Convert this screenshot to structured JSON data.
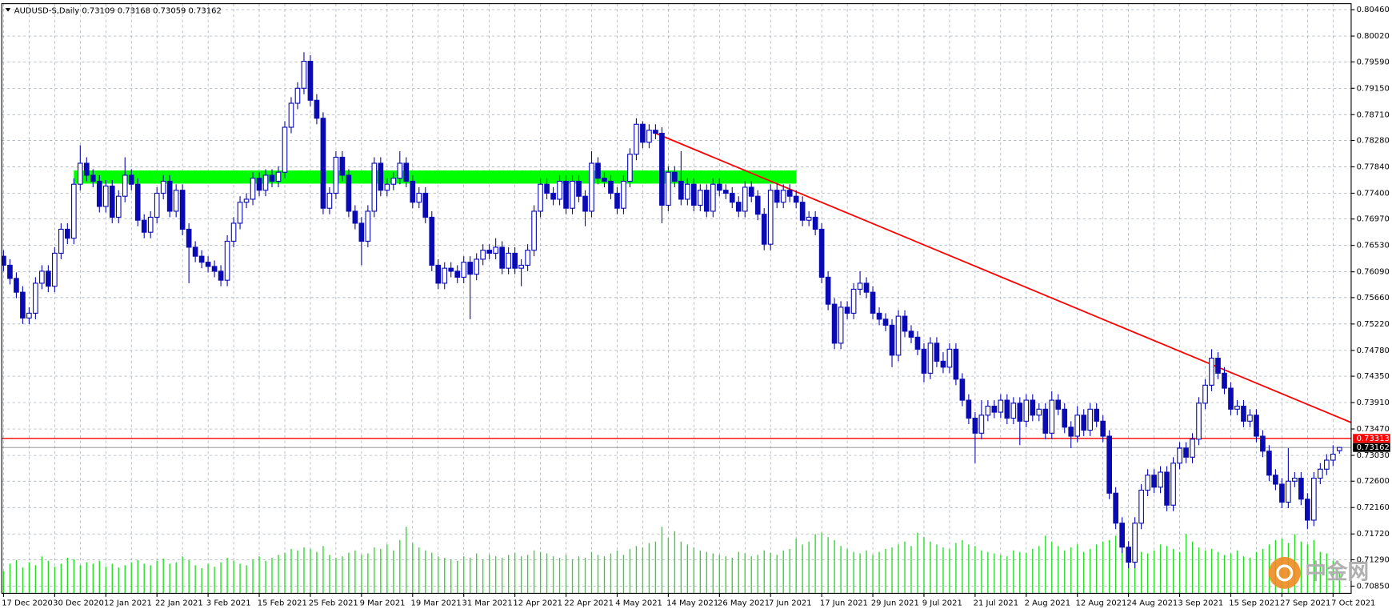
{
  "chart_data": {
    "type": "candlestick",
    "title": "AUDUSD-S,Daily",
    "color": "#0a0ab4",
    "volume_color": "#22dd22",
    "grid": true,
    "ylim": [
      0.7073,
      0.8056
    ],
    "yticks": [
      {
        "value": 0.8046,
        "label": "0.80460"
      },
      {
        "value": 0.8002,
        "label": "0.80020"
      },
      {
        "value": 0.7959,
        "label": "0.79590"
      },
      {
        "value": 0.7915,
        "label": "0.79150"
      },
      {
        "value": 0.7871,
        "label": "0.78710"
      },
      {
        "value": 0.7828,
        "label": "0.78280"
      },
      {
        "value": 0.7784,
        "label": "0.77840"
      },
      {
        "value": 0.774,
        "label": "0.77400"
      },
      {
        "value": 0.7697,
        "label": "0.76970"
      },
      {
        "value": 0.7653,
        "label": "0.76530"
      },
      {
        "value": 0.7609,
        "label": "0.76090"
      },
      {
        "value": 0.7566,
        "label": "0.75660"
      },
      {
        "value": 0.7522,
        "label": "0.75220"
      },
      {
        "value": 0.7478,
        "label": "0.74780"
      },
      {
        "value": 0.7435,
        "label": "0.74350"
      },
      {
        "value": 0.7391,
        "label": "0.73910"
      },
      {
        "value": 0.7347,
        "label": "0.73470"
      },
      {
        "value": 0.7303,
        "label": "0.73030"
      },
      {
        "value": 0.726,
        "label": "0.72600"
      },
      {
        "value": 0.7216,
        "label": "0.72160"
      },
      {
        "value": 0.7172,
        "label": "0.71720"
      },
      {
        "value": 0.7129,
        "label": "0.71290"
      },
      {
        "value": 0.7085,
        "label": "0.70850"
      }
    ],
    "categories": [
      "17 Dec 2020",
      null,
      null,
      null,
      null,
      null,
      null,
      null,
      "30 Dec 2020",
      null,
      null,
      null,
      null,
      null,
      null,
      null,
      "12 Jan 2021",
      null,
      null,
      null,
      null,
      null,
      null,
      null,
      "22 Jan 2021",
      null,
      null,
      null,
      null,
      null,
      null,
      null,
      "3 Feb 2021",
      null,
      null,
      null,
      null,
      null,
      null,
      null,
      "15 Feb 2021",
      null,
      null,
      null,
      null,
      null,
      null,
      null,
      "25 Feb 2021",
      null,
      null,
      null,
      null,
      null,
      null,
      null,
      "9 Mar 2021",
      null,
      null,
      null,
      null,
      null,
      null,
      null,
      "19 Mar 2021",
      null,
      null,
      null,
      null,
      null,
      null,
      null,
      "31 Mar 2021",
      null,
      null,
      null,
      null,
      null,
      null,
      null,
      "12 Apr 2021",
      null,
      null,
      null,
      null,
      null,
      null,
      null,
      "22 Apr 2021",
      null,
      null,
      null,
      null,
      null,
      null,
      null,
      "4 May 2021",
      null,
      null,
      null,
      null,
      null,
      null,
      null,
      "14 May 2021",
      null,
      null,
      null,
      null,
      null,
      null,
      null,
      "26 May 2021",
      null,
      null,
      null,
      null,
      null,
      null,
      null,
      "7 Jun 2021",
      null,
      null,
      null,
      null,
      null,
      null,
      null,
      "17 Jun 2021",
      null,
      null,
      null,
      null,
      null,
      null,
      null,
      "29 Jun 2021",
      null,
      null,
      null,
      null,
      null,
      null,
      null,
      "9 Jul 2021",
      null,
      null,
      null,
      null,
      null,
      null,
      null,
      "21 Jul 2021",
      null,
      null,
      null,
      null,
      null,
      null,
      null,
      "2 Aug 2021",
      null,
      null,
      null,
      null,
      null,
      null,
      null,
      "12 Aug 2021",
      null,
      null,
      null,
      null,
      null,
      null,
      null,
      "24 Aug 2021",
      null,
      null,
      null,
      null,
      null,
      null,
      null,
      "3 Sep 2021",
      null,
      null,
      null,
      null,
      null,
      null,
      null,
      "15 Sep 2021",
      null,
      null,
      null,
      null,
      null,
      null,
      null,
      "27 Sep 2021",
      null,
      null,
      null,
      null,
      null,
      null,
      null,
      "7 Oct 2021",
      null
    ],
    "open": [
      0.7635,
      0.762,
      0.7598,
      0.7575,
      0.7532,
      0.754,
      0.759,
      0.761,
      0.7585,
      0.764,
      0.768,
      0.7665,
      0.7755,
      0.779,
      0.777,
      0.776,
      0.7718,
      0.7752,
      0.77,
      0.7735,
      0.777,
      0.7755,
      0.7695,
      0.7675,
      0.77,
      0.774,
      0.776,
      0.771,
      0.7745,
      0.768,
      0.765,
      0.7635,
      0.7625,
      0.7618,
      0.761,
      0.7595,
      0.766,
      0.769,
      0.7725,
      0.773,
      0.7765,
      0.7745,
      0.777,
      0.776,
      0.7775,
      0.785,
      0.789,
      0.7915,
      0.796,
      0.7895,
      0.7865,
      0.7715,
      0.774,
      0.78,
      0.777,
      0.771,
      0.769,
      0.766,
      0.771,
      0.779,
      0.7745,
      0.7755,
      0.7765,
      0.779,
      0.776,
      0.7725,
      0.774,
      0.77,
      0.762,
      0.759,
      0.7615,
      0.761,
      0.76,
      0.7625,
      0.7605,
      0.763,
      0.7645,
      0.764,
      0.765,
      0.7615,
      0.764,
      0.7615,
      0.762,
      0.7645,
      0.771,
      0.7755,
      0.774,
      0.773,
      0.776,
      0.7715,
      0.776,
      0.7735,
      0.771,
      0.779,
      0.7765,
      0.776,
      0.774,
      0.7715,
      0.776,
      0.7805,
      0.7855,
      0.7825,
      0.7845,
      0.784,
      0.772,
      0.7775,
      0.776,
      0.773,
      0.7755,
      0.772,
      0.7745,
      0.771,
      0.7755,
      0.7745,
      0.774,
      0.7725,
      0.771,
      0.775,
      0.7735,
      0.7705,
      0.7655,
      0.7745,
      0.7725,
      0.7745,
      0.7735,
      0.7725,
      0.7695,
      0.77,
      0.768,
      0.76,
      0.7555,
      0.749,
      0.755,
      0.754,
      0.758,
      0.759,
      0.7575,
      0.754,
      0.753,
      0.752,
      0.747,
      0.7535,
      0.751,
      0.75,
      0.748,
      0.744,
      0.749,
      0.746,
      0.745,
      0.748,
      0.743,
      0.7395,
      0.7365,
      0.734,
      0.737,
      0.7385,
      0.7375,
      0.7395,
      0.7365,
      0.739,
      0.736,
      0.7395,
      0.737,
      0.738,
      0.734,
      0.7395,
      0.738,
      0.735,
      0.7335,
      0.737,
      0.7345,
      0.738,
      0.736,
      0.7335,
      0.724,
      0.719,
      0.715,
      0.7125,
      0.719,
      0.7245,
      0.727,
      0.725,
      0.7275,
      0.722,
      0.729,
      0.7315,
      0.73,
      0.733,
      0.739,
      0.742,
      0.7465,
      0.744,
      0.7415,
      0.738,
      0.7385,
      0.736,
      0.737,
      0.7335,
      0.731,
      0.727,
      0.7255,
      0.7225,
      0.726,
      0.7265,
      0.723,
      0.7195,
      0.7265,
      0.728,
      0.7295,
      0.73109
    ],
    "high": [
      0.7645,
      0.763,
      0.7608,
      0.7585,
      0.755,
      0.76,
      0.762,
      0.762,
      0.765,
      0.769,
      0.769,
      0.7765,
      0.782,
      0.78,
      0.778,
      0.777,
      0.7762,
      0.7762,
      0.7745,
      0.78,
      0.778,
      0.7765,
      0.7705,
      0.771,
      0.775,
      0.777,
      0.777,
      0.7755,
      0.7755,
      0.769,
      0.766,
      0.7645,
      0.7635,
      0.7628,
      0.762,
      0.767,
      0.77,
      0.7735,
      0.774,
      0.7775,
      0.7775,
      0.778,
      0.778,
      0.7785,
      0.786,
      0.79,
      0.7925,
      0.7975,
      0.797,
      0.7905,
      0.7875,
      0.775,
      0.781,
      0.781,
      0.778,
      0.772,
      0.77,
      0.772,
      0.78,
      0.78,
      0.7765,
      0.7775,
      0.781,
      0.78,
      0.777,
      0.775,
      0.775,
      0.771,
      0.763,
      0.7625,
      0.7625,
      0.762,
      0.7635,
      0.7635,
      0.764,
      0.7655,
      0.7655,
      0.7665,
      0.766,
      0.765,
      0.765,
      0.763,
      0.7655,
      0.772,
      0.7765,
      0.7765,
      0.775,
      0.777,
      0.777,
      0.777,
      0.777,
      0.7745,
      0.781,
      0.78,
      0.7775,
      0.777,
      0.775,
      0.777,
      0.7815,
      0.7865,
      0.786,
      0.7855,
      0.7855,
      0.785,
      0.7785,
      0.7785,
      0.781,
      0.7765,
      0.7765,
      0.7755,
      0.7755,
      0.7765,
      0.7765,
      0.7755,
      0.775,
      0.7735,
      0.776,
      0.776,
      0.7745,
      0.7715,
      0.7755,
      0.7755,
      0.7755,
      0.7755,
      0.7745,
      0.7735,
      0.771,
      0.771,
      0.769,
      0.761,
      0.7565,
      0.756,
      0.756,
      0.759,
      0.761,
      0.76,
      0.7585,
      0.755,
      0.754,
      0.753,
      0.7545,
      0.7545,
      0.752,
      0.751,
      0.749,
      0.75,
      0.75,
      0.7475,
      0.749,
      0.749,
      0.744,
      0.7405,
      0.7375,
      0.7395,
      0.7395,
      0.7395,
      0.7405,
      0.7405,
      0.74,
      0.74,
      0.7405,
      0.7405,
      0.739,
      0.739,
      0.741,
      0.7405,
      0.739,
      0.736,
      0.7385,
      0.738,
      0.739,
      0.739,
      0.737,
      0.7345,
      0.725,
      0.72,
      0.716,
      0.72,
      0.7255,
      0.728,
      0.728,
      0.7285,
      0.7285,
      0.73,
      0.7325,
      0.7325,
      0.734,
      0.74,
      0.743,
      0.748,
      0.7475,
      0.745,
      0.7425,
      0.7395,
      0.7395,
      0.738,
      0.738,
      0.7345,
      0.732,
      0.728,
      0.7265,
      0.7315,
      0.7275,
      0.7275,
      0.724,
      0.7275,
      0.729,
      0.7305,
      0.732,
      0.73168
    ],
    "low": [
      0.761,
      0.7588,
      0.7565,
      0.7522,
      0.7522,
      0.753,
      0.758,
      0.7575,
      0.7575,
      0.763,
      0.7655,
      0.7655,
      0.7745,
      0.776,
      0.775,
      0.7708,
      0.7708,
      0.769,
      0.769,
      0.7725,
      0.7745,
      0.7685,
      0.7665,
      0.7665,
      0.769,
      0.773,
      0.77,
      0.77,
      0.767,
      0.759,
      0.7625,
      0.7615,
      0.7608,
      0.76,
      0.7585,
      0.7585,
      0.765,
      0.768,
      0.7715,
      0.772,
      0.7735,
      0.7735,
      0.775,
      0.775,
      0.7765,
      0.784,
      0.788,
      0.7905,
      0.7885,
      0.7855,
      0.7705,
      0.7705,
      0.773,
      0.776,
      0.77,
      0.768,
      0.762,
      0.765,
      0.77,
      0.7735,
      0.7735,
      0.7745,
      0.7755,
      0.775,
      0.7715,
      0.7715,
      0.769,
      0.761,
      0.758,
      0.758,
      0.76,
      0.759,
      0.759,
      0.753,
      0.7595,
      0.762,
      0.763,
      0.763,
      0.7605,
      0.7605,
      0.7605,
      0.7585,
      0.761,
      0.7635,
      0.77,
      0.773,
      0.772,
      0.772,
      0.7705,
      0.7705,
      0.7725,
      0.7685,
      0.77,
      0.7755,
      0.775,
      0.773,
      0.7705,
      0.7705,
      0.775,
      0.7795,
      0.7815,
      0.7815,
      0.783,
      0.769,
      0.771,
      0.775,
      0.772,
      0.772,
      0.771,
      0.771,
      0.77,
      0.77,
      0.7735,
      0.773,
      0.7715,
      0.77,
      0.77,
      0.7725,
      0.7695,
      0.7645,
      0.7645,
      0.7715,
      0.7715,
      0.7725,
      0.7715,
      0.7685,
      0.7685,
      0.767,
      0.759,
      0.7545,
      0.748,
      0.748,
      0.753,
      0.753,
      0.757,
      0.7565,
      0.753,
      0.752,
      0.751,
      0.745,
      0.746,
      0.75,
      0.749,
      0.747,
      0.7425,
      0.743,
      0.745,
      0.744,
      0.744,
      0.742,
      0.7385,
      0.7355,
      0.729,
      0.733,
      0.736,
      0.7365,
      0.7365,
      0.7355,
      0.7355,
      0.732,
      0.735,
      0.736,
      0.736,
      0.733,
      0.733,
      0.737,
      0.734,
      0.7315,
      0.7325,
      0.7335,
      0.7335,
      0.735,
      0.7325,
      0.723,
      0.718,
      0.714,
      0.7115,
      0.7115,
      0.718,
      0.7235,
      0.724,
      0.724,
      0.721,
      0.721,
      0.728,
      0.729,
      0.729,
      0.732,
      0.738,
      0.741,
      0.743,
      0.7405,
      0.737,
      0.737,
      0.735,
      0.735,
      0.7325,
      0.73,
      0.726,
      0.7245,
      0.7215,
      0.7215,
      0.725,
      0.722,
      0.718,
      0.7185,
      0.7255,
      0.727,
      0.7285,
      0.73059
    ],
    "close": [
      0.762,
      0.7598,
      0.7575,
      0.7532,
      0.754,
      0.759,
      0.761,
      0.7585,
      0.764,
      0.768,
      0.7665,
      0.7755,
      0.779,
      0.777,
      0.776,
      0.7718,
      0.7752,
      0.77,
      0.7735,
      0.777,
      0.7755,
      0.7695,
      0.7675,
      0.77,
      0.774,
      0.776,
      0.771,
      0.7745,
      0.768,
      0.765,
      0.7635,
      0.7625,
      0.7618,
      0.761,
      0.7595,
      0.766,
      0.769,
      0.7725,
      0.773,
      0.7765,
      0.7745,
      0.777,
      0.776,
      0.7775,
      0.785,
      0.789,
      0.7915,
      0.796,
      0.7895,
      0.7865,
      0.7715,
      0.774,
      0.78,
      0.777,
      0.771,
      0.769,
      0.766,
      0.771,
      0.779,
      0.7745,
      0.7755,
      0.7765,
      0.779,
      0.776,
      0.7725,
      0.774,
      0.77,
      0.762,
      0.759,
      0.7615,
      0.761,
      0.76,
      0.7625,
      0.7605,
      0.763,
      0.7645,
      0.764,
      0.765,
      0.7615,
      0.764,
      0.7615,
      0.762,
      0.7645,
      0.771,
      0.7755,
      0.774,
      0.773,
      0.776,
      0.7715,
      0.776,
      0.7735,
      0.771,
      0.779,
      0.7765,
      0.776,
      0.774,
      0.7715,
      0.776,
      0.7805,
      0.7855,
      0.7825,
      0.7845,
      0.784,
      0.772,
      0.7775,
      0.776,
      0.773,
      0.7755,
      0.772,
      0.7745,
      0.771,
      0.7755,
      0.7745,
      0.774,
      0.7725,
      0.771,
      0.775,
      0.7735,
      0.7705,
      0.7655,
      0.7745,
      0.7725,
      0.7745,
      0.7735,
      0.7725,
      0.7695,
      0.77,
      0.768,
      0.76,
      0.7555,
      0.749,
      0.755,
      0.754,
      0.758,
      0.759,
      0.7575,
      0.754,
      0.753,
      0.752,
      0.747,
      0.7535,
      0.751,
      0.75,
      0.748,
      0.744,
      0.749,
      0.746,
      0.745,
      0.748,
      0.743,
      0.7395,
      0.7365,
      0.734,
      0.737,
      0.7385,
      0.7375,
      0.7395,
      0.7365,
      0.739,
      0.736,
      0.7395,
      0.737,
      0.738,
      0.734,
      0.7395,
      0.738,
      0.735,
      0.7335,
      0.737,
      0.7345,
      0.738,
      0.736,
      0.7335,
      0.724,
      0.719,
      0.715,
      0.7125,
      0.719,
      0.7245,
      0.727,
      0.725,
      0.7275,
      0.722,
      0.729,
      0.7315,
      0.73,
      0.733,
      0.739,
      0.742,
      0.7465,
      0.744,
      0.7415,
      0.738,
      0.7385,
      0.736,
      0.737,
      0.7335,
      0.731,
      0.727,
      0.7255,
      0.7225,
      0.726,
      0.7265,
      0.723,
      0.7195,
      0.7265,
      0.728,
      0.7295,
      0.7305,
      0.73162
    ],
    "volume": [
      30,
      40,
      45,
      35,
      42,
      38,
      50,
      44,
      36,
      40,
      48,
      46,
      38,
      42,
      40,
      44,
      36,
      40,
      35,
      38,
      42,
      45,
      40,
      38,
      44,
      47,
      40,
      42,
      50,
      45,
      38,
      34,
      40,
      36,
      42,
      48,
      44,
      40,
      38,
      46,
      50,
      44,
      48,
      52,
      55,
      60,
      58,
      62,
      60,
      56,
      64,
      52,
      48,
      50,
      55,
      58,
      52,
      54,
      62,
      60,
      66,
      58,
      72,
      90,
      68,
      62,
      58,
      55,
      50,
      48,
      46,
      44,
      50,
      48,
      54,
      46,
      52,
      50,
      48,
      52,
      55,
      50,
      52,
      58,
      56,
      54,
      50,
      48,
      52,
      46,
      50,
      48,
      56,
      52,
      50,
      54,
      58,
      52,
      60,
      64,
      62,
      68,
      70,
      90,
      75,
      84,
      70,
      66,
      62,
      58,
      56,
      54,
      52,
      50,
      48,
      56,
      54,
      50,
      52,
      58,
      55,
      52,
      58,
      60,
      74,
      66,
      70,
      80,
      82,
      76,
      72,
      64,
      60,
      56,
      54,
      58,
      52,
      56,
      60,
      62,
      66,
      70,
      64,
      82,
      76,
      70,
      66,
      62,
      60,
      68,
      72,
      66,
      64,
      58,
      56,
      54,
      52,
      50,
      58,
      56,
      55,
      60,
      64,
      78,
      70,
      64,
      58,
      62,
      66,
      56,
      60,
      66,
      70,
      72,
      78,
      70,
      62,
      58,
      56,
      54,
      58,
      66,
      64,
      60,
      56,
      80,
      70,
      62,
      58,
      60,
      56,
      52,
      54,
      58,
      50,
      48,
      56,
      60,
      66,
      72,
      74,
      68,
      80,
      70,
      66,
      72,
      56,
      54,
      44,
      30
    ],
    "hline": {
      "value": 0.73313,
      "color": "#ff0000"
    },
    "zone": {
      "from": 0.7756,
      "to": 0.7778,
      "start": 11,
      "end": 124,
      "color": "#00ff00"
    },
    "trendline": {
      "from": [
        102,
        0.784
      ],
      "to": [
        211,
        0.7357
      ],
      "color": "#ff0000"
    }
  },
  "watermark": {
    "text": "中金网"
  }
}
